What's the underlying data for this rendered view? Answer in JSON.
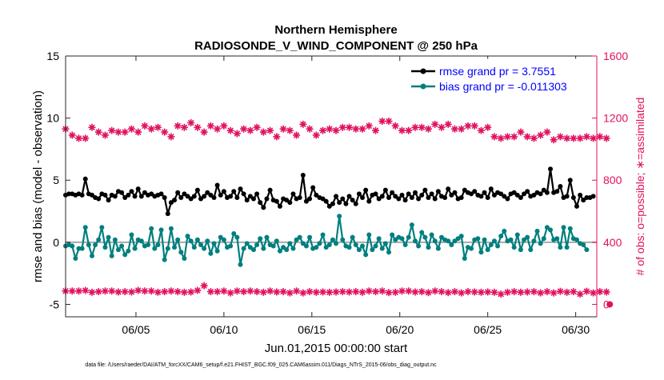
{
  "chart_data": {
    "type": "line",
    "title": "Northern Hemisphere",
    "subtitle": "RADIOSONDE_V_WIND_COMPONENT @ 250 hPa",
    "xlabel": "Jun.01,2015 00:00:00 start",
    "ylabel": "rmse and bias (model - observation)",
    "ylabel_right": "# of obs: o=possible; ∗=assimilated",
    "footer": "data file: /Users/raeder/DAI/ATM_forcXX/CAM6_setup/f.e21.FHIST_BGC.f09_025.CAM6assim.011/Diags_NTrS_2015-06/obs_diag_output.nc",
    "xlim": [
      1.0,
      31.2
    ],
    "ylim": [
      -6,
      15
    ],
    "ylim_right": [
      -80,
      1600
    ],
    "x_ticks": [
      5,
      10,
      15,
      20,
      25,
      30
    ],
    "x_tick_labels": [
      "06/05",
      "06/10",
      "06/15",
      "06/20",
      "06/25",
      "06/30"
    ],
    "y_ticks": [
      -5,
      0,
      5,
      10,
      15
    ],
    "y_tick_labels": [
      "-5",
      "0",
      "5",
      "10",
      "15"
    ],
    "y_ticks_right": [
      0,
      400,
      800,
      1200,
      1600
    ],
    "y_tick_labels_right": [
      "0",
      "400",
      "800",
      "1200",
      "1600"
    ],
    "legend": [
      "rmse grand pr = 3.7551",
      "bias grand pr = -0.011303"
    ],
    "colors": {
      "rmse": "#000000",
      "bias": "#007f7f",
      "obs": "#e0115f",
      "zero_line": "#aaaaaa",
      "legend_text": "#0000ff",
      "right_axis": "#e0115f"
    },
    "rmse_values": [
      3.8,
      3.9,
      3.9,
      3.8,
      3.9,
      3.8,
      5.1,
      3.9,
      3.8,
      3.6,
      3.5,
      3.9,
      3.8,
      3.4,
      3.8,
      3.7,
      4.1,
      4.0,
      3.6,
      3.8,
      4.1,
      3.7,
      4.3,
      3.7,
      4.0,
      3.8,
      3.9,
      3.7,
      3.8,
      3.9,
      3.6,
      2.3,
      3.2,
      3.4,
      4.0,
      3.6,
      3.9,
      3.7,
      3.5,
      3.7,
      4.2,
      3.5,
      3.7,
      4.0,
      3.8,
      3.6,
      4.6,
      3.8,
      4.1,
      3.6,
      3.7,
      4.1,
      3.6,
      4.3,
      3.9,
      3.4,
      3.7,
      3.5,
      3.9,
      3.2,
      2.8,
      3.5,
      4.2,
      3.4,
      3.3,
      2.9,
      3.5,
      3.4,
      3.2,
      3.9,
      3.5,
      3.6,
      5.4,
      3.3,
      3.5,
      4.4,
      3.8,
      3.6,
      3.5,
      3.3,
      2.9,
      3.1,
      3.7,
      3.2,
      3.5,
      3.1,
      3.7,
      3.4,
      3.1,
      3.9,
      3.6,
      4.2,
      3.3,
      3.8,
      3.9,
      3.5,
      3.7,
      4.2,
      3.6,
      4.0,
      3.7,
      3.5,
      3.8,
      3.4,
      3.9,
      3.6,
      4.0,
      3.5,
      3.8,
      4.2,
      3.6,
      3.9,
      3.5,
      4.1,
      3.7,
      3.6,
      4.3,
      3.8,
      4.0,
      3.5,
      3.6,
      4.2,
      4.0,
      3.9,
      4.1,
      3.8,
      3.7,
      4.0,
      3.6,
      4.3,
      3.8,
      4.0,
      3.9,
      3.7,
      3.5,
      3.9,
      4.0,
      3.8,
      3.6,
      3.9,
      4.1,
      3.7,
      3.8,
      4.0,
      3.9,
      4.2,
      4.0,
      5.9,
      4.0,
      4.1,
      4.5,
      3.6,
      3.7,
      5.0,
      3.6,
      2.9,
      3.8,
      3.4,
      3.6,
      3.6,
      3.7
    ],
    "bias_values": [
      -0.3,
      -0.2,
      -0.3,
      -1.3,
      -0.5,
      -0.5,
      1.2,
      -0.2,
      -1.1,
      -0.2,
      0.2,
      1.2,
      -0.4,
      0.4,
      -1.1,
      0.2,
      -0.6,
      -0.3,
      -1.0,
      -0.7,
      0.6,
      -0.5,
      0.2,
      0.1,
      -0.3,
      -0.2,
      1.1,
      -0.5,
      -0.2,
      1.0,
      -1.4,
      -0.5,
      1.1,
      -0.4,
      0.2,
      -0.8,
      -1.3,
      0.5,
      0.1,
      -0.4,
      0.2,
      -0.2,
      -0.5,
      0.1,
      -0.9,
      -0.1,
      -0.7,
      0.4,
      0.2,
      -0.4,
      -0.3,
      0.7,
      0.4,
      -1.8,
      -0.5,
      -0.1,
      -0.4,
      -0.6,
      -0.2,
      0.3,
      -0.5,
      0.4,
      -0.2,
      -0.3,
      0.1,
      -0.7,
      -0.4,
      -0.6,
      -0.1,
      -0.5,
      0.2,
      0.4,
      -0.1,
      -0.3,
      0.4,
      -0.5,
      -0.4,
      -0.1,
      0.6,
      -0.4,
      -0.2,
      0.2,
      -0.1,
      2.1,
      0.2,
      -0.3,
      -0.4,
      0.4,
      -0.2,
      -0.6,
      -0.3,
      -1.0,
      0.6,
      -0.6,
      -0.3,
      0.3,
      -0.5,
      -0.1,
      -0.8,
      0.6,
      0.2,
      0.4,
      0.3,
      -0.2,
      0.4,
      1.4,
      0.1,
      -0.3,
      0.8,
      0.4,
      -0.4,
      0.6,
      0.1,
      -0.5,
      0.4,
      0.2,
      0.1,
      -0.2,
      0.1,
      0.3,
      0.5,
      -1.3,
      -0.4,
      -0.5,
      0.2,
      0.3,
      -0.8,
      0.2,
      -0.6,
      -0.2,
      0.1,
      -0.3,
      0.5,
      0.9,
      0.1,
      0.2,
      -0.4,
      0.6,
      -0.6,
      0.2,
      0.4,
      -0.6,
      0.1,
      0.9,
      -0.1,
      0.3,
      1.2,
      1.0,
      0.2,
      0.3,
      -0.4,
      1.2,
      -0.4,
      1.1,
      0.3,
      0.2,
      -0.1,
      -0.2,
      -0.6
    ],
    "obs_possible": [
      86,
      82,
      86,
      78,
      86,
      80,
      90,
      82,
      78,
      86,
      82,
      74,
      86,
      80,
      86,
      74,
      80,
      86,
      82,
      86,
      80,
      86,
      90,
      80,
      86,
      82,
      86,
      80,
      78,
      86,
      82,
      78,
      86,
      74,
      82,
      82,
      78,
      86,
      80,
      86,
      90,
      86,
      120,
      86,
      82,
      74,
      82,
      78,
      86,
      80,
      74,
      80,
      86,
      74,
      82,
      82,
      86,
      78,
      82,
      74,
      78,
      82,
      86,
      74,
      80,
      86,
      82,
      76,
      74,
      82,
      86,
      80,
      74,
      78,
      82,
      74,
      78,
      86,
      80,
      82,
      78,
      86,
      80,
      74,
      82,
      76,
      80,
      86,
      82,
      86,
      78,
      74,
      86,
      80,
      82,
      76,
      86,
      80,
      76,
      72,
      78,
      74,
      86,
      80,
      86,
      74,
      80,
      86,
      82,
      78,
      76,
      80,
      86,
      74,
      82,
      86,
      76,
      80,
      82,
      70,
      74,
      80,
      82,
      76,
      80,
      74,
      78,
      76,
      80,
      74,
      78,
      60,
      66,
      74,
      78,
      72,
      82,
      70,
      78,
      74,
      80,
      76,
      82,
      68,
      74,
      80,
      82,
      76,
      74,
      68,
      84,
      74,
      78,
      80,
      82,
      70,
      66,
      78,
      84,
      76,
      74,
      80,
      82,
      74,
      80,
      0
    ],
    "obs_assimilated": [
      1130,
      1110,
      1090,
      1070,
      1070,
      1080,
      1070,
      1150,
      1140,
      1120,
      1110,
      1100,
      1090,
      1130,
      1120,
      1100,
      1110,
      1080,
      1110,
      1100,
      1130,
      1120,
      1110,
      1140,
      1150,
      1150,
      1130,
      1120,
      1140,
      1130,
      1110,
      1100,
      1080,
      1130,
      1150,
      1120,
      1140,
      1130,
      1170,
      1150,
      1140,
      1130,
      1110,
      1100,
      1150,
      1140,
      1130,
      1190,
      1150,
      1140,
      1120,
      1110,
      1100,
      1180,
      1130,
      1150,
      1120,
      1130,
      1140,
      1120,
      1110,
      1110,
      1120,
      1100,
      1080,
      1100,
      1130,
      1150,
      1120,
      1110,
      1090,
      1160,
      1160,
      1170,
      1130,
      1110,
      1090,
      1140,
      1120,
      1100,
      1130,
      1140,
      1120,
      1130,
      1140,
      1140,
      1140,
      1110,
      1130,
      1120,
      1130,
      1140,
      1150,
      1130,
      1120,
      1130,
      1180,
      1190,
      1180,
      1190,
      1150,
      1140,
      1120,
      1110,
      1120,
      1140,
      1140,
      1120,
      1140,
      1130,
      1130,
      1150,
      1160,
      1130,
      1140,
      1150,
      1160,
      1150,
      1130,
      1120,
      1130,
      1150,
      1150,
      1140,
      1150,
      1130,
      1120,
      1110,
      1140,
      1100,
      1080,
      1060,
      1070,
      1070,
      1080,
      1080,
      1080,
      1090,
      1110,
      1100,
      1080,
      1080,
      1070,
      1080,
      1090,
      1070,
      1110,
      1090,
      1060,
      1070,
      1080,
      1080,
      1070,
      1080,
      1070,
      1070,
      1070,
      1070,
      1080,
      1080,
      1070,
      1080,
      1080,
      1070,
      1070,
      1080
    ]
  }
}
